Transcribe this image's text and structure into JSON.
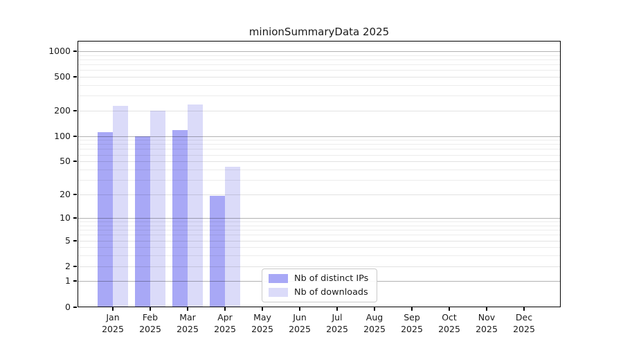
{
  "chart_data": {
    "type": "bar",
    "title": "minionSummaryData 2025",
    "year": "2025",
    "categories": [
      "Jan",
      "Feb",
      "Mar",
      "Apr",
      "May",
      "Jun",
      "Jul",
      "Aug",
      "Sep",
      "Oct",
      "Nov",
      "Dec"
    ],
    "series": [
      {
        "name": "Nb of distinct IPs",
        "color": "#a8a8f6",
        "values": [
          112,
          100,
          117,
          19,
          0,
          0,
          0,
          0,
          0,
          0,
          0,
          0
        ]
      },
      {
        "name": "Nb of downloads",
        "color": "#dbdbf9",
        "values": [
          226,
          200,
          238,
          43,
          0,
          0,
          0,
          0,
          0,
          0,
          0,
          0
        ]
      }
    ],
    "y_axis": {
      "scale": "log1p-symlog",
      "tick_values": [
        0,
        1,
        2,
        5,
        10,
        20,
        50,
        100,
        200,
        500,
        1000
      ],
      "tick_labels": [
        "0",
        "1",
        "2",
        "5",
        "10",
        "20",
        "50",
        "100",
        "200",
        "500",
        "1000"
      ],
      "minor_tick_values": [
        3,
        4,
        6,
        7,
        8,
        9,
        30,
        40,
        60,
        70,
        80,
        90,
        300,
        400,
        600,
        700,
        800,
        900
      ],
      "range": [
        0,
        1300
      ],
      "grid": "on"
    },
    "legend": {
      "position": "lower-center-inside",
      "entries": [
        "Nb of distinct IPs",
        "Nb of downloads"
      ]
    }
  }
}
